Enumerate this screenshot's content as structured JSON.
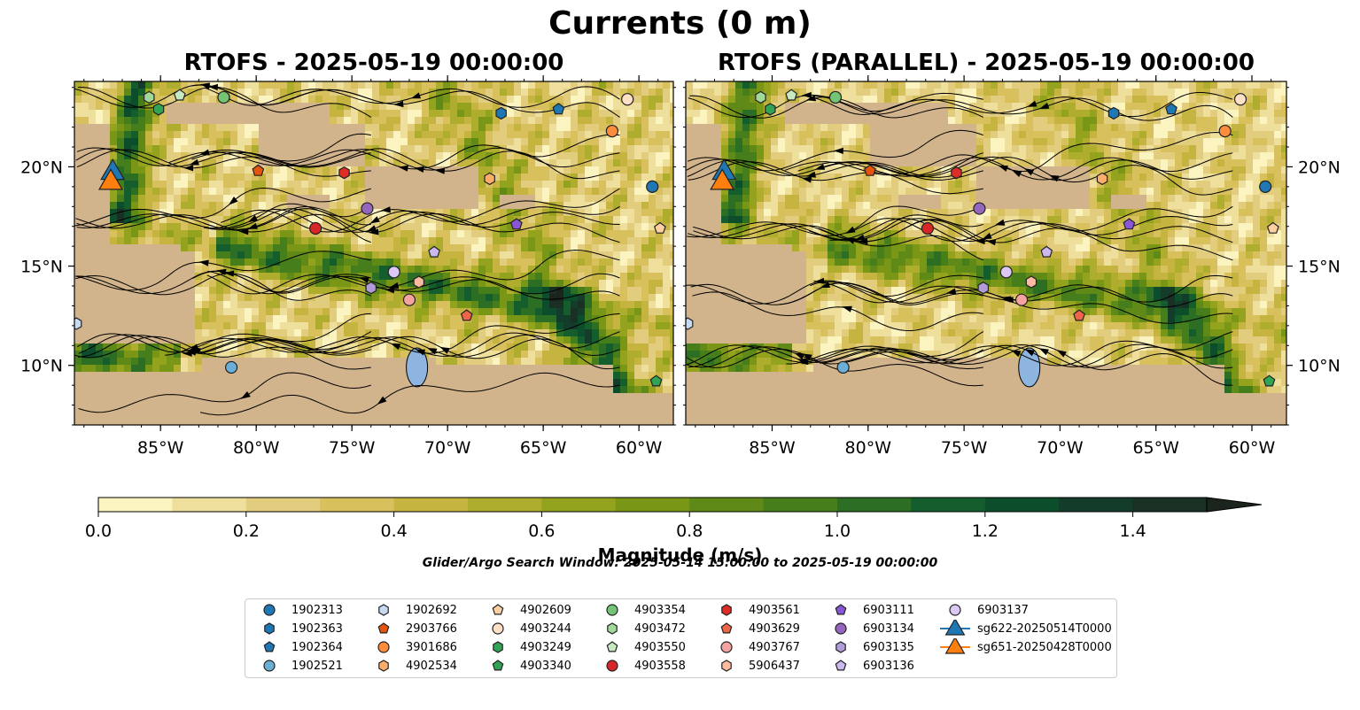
{
  "figure": {
    "title": "Currents (0 m)",
    "window_text": "Glider/Argo Search Window: 2025-05-14 15:00:00 to 2025-05-19 00:00:00"
  },
  "panels": [
    {
      "title": "RTOFS - 2025-05-19 00:00:00"
    },
    {
      "title": "RTOFS (PARALLEL) - 2025-05-19 00:00:00"
    }
  ],
  "colorbar": {
    "label": "Magnitude (m/s)",
    "ticks": [
      "0.0",
      "0.2",
      "0.4",
      "0.6",
      "0.8",
      "1.0",
      "1.2",
      "1.4"
    ],
    "colors": [
      "#fbf3c0",
      "#eedf9c",
      "#e2cd7e",
      "#d8c15c",
      "#c6b441",
      "#aead2e",
      "#93a31e",
      "#7a9617",
      "#5f8a18",
      "#457e1b",
      "#2c6e23",
      "#135e2c",
      "#0c4d2c",
      "#133c2a",
      "#1a3024",
      "#1b241d"
    ]
  },
  "chart_data": {
    "type": "map",
    "variable": "Currents (0 m)",
    "units": "m/s",
    "color_range": [
      0.0,
      1.5
    ],
    "extent": {
      "lon": [
        -89.5,
        -58.2
      ],
      "lat": [
        7.0,
        24.3
      ]
    },
    "x_ticks": [
      "85°W",
      "80°W",
      "75°W",
      "70°W",
      "65°W",
      "60°W"
    ],
    "x_tick_values": [
      -85,
      -80,
      -75,
      -70,
      -65,
      -60
    ],
    "y_ticks": [
      "10°N",
      "15°N",
      "20°N"
    ],
    "y_tick_values": [
      10,
      15,
      20
    ],
    "legend": [
      {
        "id": "1902313",
        "marker": "circle",
        "color": "#1f77b4",
        "lon": -59.3,
        "lat": 19.0
      },
      {
        "id": "1902363",
        "marker": "hexagon",
        "color": "#1f77b4",
        "lon": -67.2,
        "lat": 22.7
      },
      {
        "id": "1902364",
        "marker": "pentagon",
        "color": "#1f77b4",
        "lon": -64.2,
        "lat": 22.9
      },
      {
        "id": "1902521",
        "marker": "circle",
        "color": "#6baed6",
        "lon": -81.3,
        "lat": 9.9
      },
      {
        "id": "1902692",
        "marker": "hexagon",
        "color": "#c6dbef",
        "lon": -89.4,
        "lat": 12.1
      },
      {
        "id": "2903766",
        "marker": "pentagon",
        "color": "#e6550d",
        "lon": -79.9,
        "lat": 19.8
      },
      {
        "id": "3901686",
        "marker": "circle",
        "color": "#fd8d3c",
        "lon": -61.4,
        "lat": 21.8
      },
      {
        "id": "4902534",
        "marker": "hexagon",
        "color": "#fdae6b",
        "lon": -67.8,
        "lat": 19.4
      },
      {
        "id": "4902609",
        "marker": "pentagon",
        "color": "#fdd0a2",
        "lon": -58.9,
        "lat": 16.9
      },
      {
        "id": "4903244",
        "marker": "circle",
        "color": "#fde0c5",
        "lon": -60.6,
        "lat": 23.4
      },
      {
        "id": "4903249",
        "marker": "hexagon",
        "color": "#31a354",
        "lon": -85.1,
        "lat": 22.9
      },
      {
        "id": "4903340",
        "marker": "pentagon",
        "color": "#31a354",
        "lon": -59.1,
        "lat": 9.2
      },
      {
        "id": "4903354",
        "marker": "circle",
        "color": "#74c476",
        "lon": -81.7,
        "lat": 23.5
      },
      {
        "id": "4903472",
        "marker": "hexagon",
        "color": "#a1d99b",
        "lon": -85.6,
        "lat": 23.5
      },
      {
        "id": "4903550",
        "marker": "pentagon",
        "color": "#c7e9c0",
        "lon": -84.0,
        "lat": 23.6
      },
      {
        "id": "4903558",
        "marker": "circle",
        "color": "#d62728",
        "lon": -76.9,
        "lat": 16.9
      },
      {
        "id": "4903561",
        "marker": "hexagon",
        "color": "#de2d26",
        "lon": -75.4,
        "lat": 19.7
      },
      {
        "id": "4903629",
        "marker": "pentagon",
        "color": "#ef6548",
        "lon": -69.0,
        "lat": 12.5
      },
      {
        "id": "4903767",
        "marker": "circle",
        "color": "#f4a3a0",
        "lon": -72.0,
        "lat": 13.3
      },
      {
        "id": "5906437",
        "marker": "hexagon",
        "color": "#fcbba1",
        "lon": -71.5,
        "lat": 14.2
      },
      {
        "id": "6903111",
        "marker": "pentagon",
        "color": "#8856d6",
        "lon": -66.4,
        "lat": 17.1
      },
      {
        "id": "6903134",
        "marker": "circle",
        "color": "#9467bd",
        "lon": -74.2,
        "lat": 17.9
      },
      {
        "id": "6903135",
        "marker": "hexagon",
        "color": "#b19cd9",
        "lon": -74.0,
        "lat": 13.9
      },
      {
        "id": "6903136",
        "marker": "pentagon",
        "color": "#cbb8ec",
        "lon": -70.7,
        "lat": 15.7
      },
      {
        "id": "6903137",
        "marker": "circle",
        "color": "#dcc8f5",
        "lon": -72.8,
        "lat": 14.7
      },
      {
        "id": "sg622-20250514T0000",
        "marker": "triangle",
        "color": "#1f77b4",
        "lon": -87.5,
        "lat": 19.7
      },
      {
        "id": "sg651-20250428T0000",
        "marker": "triangle",
        "color": "#ff7f0e",
        "lon": -87.6,
        "lat": 19.2
      }
    ]
  }
}
